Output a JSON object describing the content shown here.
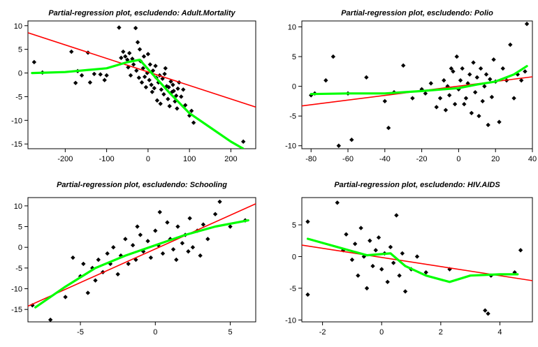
{
  "chart_data": [
    {
      "type": "scatter",
      "title": "Partial-regression plot, escludendo: Adult.Mortality",
      "xlim": [
        -290,
        260
      ],
      "ylim": [
        -16,
        11
      ],
      "xticks": [
        -200,
        -100,
        0,
        100,
        200
      ],
      "yticks": [
        -15,
        -10,
        -5,
        0,
        5,
        10
      ],
      "points": [
        [
          -275,
          2.3
        ],
        [
          -255,
          0.1
        ],
        [
          -185,
          4.5
        ],
        [
          -175,
          -2.1
        ],
        [
          -170,
          0.4
        ],
        [
          -160,
          -0.5
        ],
        [
          -145,
          4.3
        ],
        [
          -140,
          -2
        ],
        [
          -130,
          -0.2
        ],
        [
          -115,
          -0.3
        ],
        [
          -105,
          -1.5
        ],
        [
          -100,
          -0.5
        ],
        [
          -70,
          9.6
        ],
        [
          -65,
          3.2
        ],
        [
          -60,
          4.5
        ],
        [
          -55,
          3.5
        ],
        [
          -50,
          2.8
        ],
        [
          -48,
          1.2
        ],
        [
          -45,
          4.2
        ],
        [
          -42,
          -0.5
        ],
        [
          -38,
          3
        ],
        [
          -35,
          1.8
        ],
        [
          -30,
          9.5
        ],
        [
          -28,
          0.5
        ],
        [
          -25,
          6.5
        ],
        [
          -22,
          -1
        ],
        [
          -20,
          5
        ],
        [
          -18,
          2.5
        ],
        [
          -15,
          -2
        ],
        [
          -12,
          1
        ],
        [
          -10,
          3.5
        ],
        [
          -8,
          -0.8
        ],
        [
          -5,
          -3
        ],
        [
          -2,
          0
        ],
        [
          0,
          4
        ],
        [
          3,
          -1.5
        ],
        [
          5,
          1.8
        ],
        [
          8,
          -2.5
        ],
        [
          10,
          -4
        ],
        [
          12,
          0.5
        ],
        [
          15,
          -3.2
        ],
        [
          18,
          1.5
        ],
        [
          20,
          -1
        ],
        [
          22,
          -5.8
        ],
        [
          25,
          -2
        ],
        [
          28,
          -0.5
        ],
        [
          30,
          -6.5
        ],
        [
          32,
          -3.5
        ],
        [
          35,
          -1.2
        ],
        [
          38,
          -4.5
        ],
        [
          40,
          -0.2
        ],
        [
          42,
          1
        ],
        [
          45,
          -2.8
        ],
        [
          48,
          -5.5
        ],
        [
          50,
          -3
        ],
        [
          52,
          -7
        ],
        [
          55,
          -1.8
        ],
        [
          58,
          -4
        ],
        [
          60,
          -2.5
        ],
        [
          62,
          -3.8
        ],
        [
          65,
          -6
        ],
        [
          68,
          -4.8
        ],
        [
          70,
          -7.5
        ],
        [
          72,
          -3.3
        ],
        [
          75,
          -2
        ],
        [
          80,
          -5
        ],
        [
          85,
          -3.5
        ],
        [
          90,
          -6.8
        ],
        [
          100,
          -9
        ],
        [
          105,
          -8
        ],
        [
          110,
          -10.5
        ],
        [
          230,
          -14.5
        ]
      ],
      "series": [
        {
          "color": "#ff0000",
          "line": [
            [
              -290,
              8.5
            ],
            [
              260,
              -7.2
            ]
          ]
        },
        {
          "color": "#00ff00",
          "line": [
            [
              -280,
              0
            ],
            [
              -200,
              0.2
            ],
            [
              -100,
              1
            ],
            [
              -50,
              2.3
            ],
            [
              -20,
              2.8
            ],
            [
              0,
              0.8
            ],
            [
              50,
              -4
            ],
            [
              100,
              -8.5
            ],
            [
              150,
              -11.5
            ],
            [
              200,
              -14.5
            ],
            [
              230,
              -16
            ]
          ]
        }
      ]
    },
    {
      "type": "scatter",
      "title": "Partial-regression plot, escludendo: Polio",
      "xlim": [
        -85,
        40
      ],
      "ylim": [
        -10.5,
        11
      ],
      "xticks": [
        -80,
        -60,
        -40,
        -20,
        0,
        20,
        40
      ],
      "yticks": [
        -10,
        -5,
        0,
        5,
        10
      ],
      "points": [
        [
          -80,
          -1.5
        ],
        [
          -78,
          -1.2
        ],
        [
          -72,
          1
        ],
        [
          -68,
          5
        ],
        [
          -65,
          -10
        ],
        [
          -60,
          -1.2
        ],
        [
          -58,
          -9
        ],
        [
          -50,
          1.5
        ],
        [
          -40,
          -2.5
        ],
        [
          -38,
          -7
        ],
        [
          -35,
          -1
        ],
        [
          -30,
          3.5
        ],
        [
          -25,
          -2
        ],
        [
          -20,
          -0.5
        ],
        [
          -18,
          -1.2
        ],
        [
          -15,
          0.5
        ],
        [
          -12,
          -3.5
        ],
        [
          -10,
          -2
        ],
        [
          -8,
          1
        ],
        [
          -5,
          -1.5
        ],
        [
          -3,
          2.5
        ],
        [
          0,
          -0.5
        ],
        [
          1,
          1
        ],
        [
          2,
          3
        ],
        [
          3,
          -3
        ],
        [
          4,
          -2
        ],
        [
          5,
          0.5
        ],
        [
          6,
          2
        ],
        [
          7,
          -4.5
        ],
        [
          8,
          4
        ],
        [
          9,
          -1
        ],
        [
          10,
          1.5
        ],
        [
          11,
          -5
        ],
        [
          12,
          3
        ],
        [
          13,
          -2.5
        ],
        [
          14,
          0
        ],
        [
          15,
          2
        ],
        [
          16,
          -6.5
        ],
        [
          17,
          1.2
        ],
        [
          18,
          -1.8
        ],
        [
          19,
          4.5
        ],
        [
          20,
          0.8
        ],
        [
          -7,
          -4
        ],
        [
          -6,
          0
        ],
        [
          -4,
          3
        ],
        [
          -2,
          -3
        ],
        [
          -1,
          5
        ],
        [
          22,
          -6
        ],
        [
          24,
          3
        ],
        [
          26,
          1
        ],
        [
          28,
          7
        ],
        [
          30,
          -2
        ],
        [
          32,
          2
        ],
        [
          34,
          1
        ],
        [
          36,
          2.5
        ],
        [
          37,
          10.5
        ]
      ],
      "series": [
        {
          "color": "#ff0000",
          "line": [
            [
              -85,
              -3.3
            ],
            [
              40,
              1.6
            ]
          ]
        },
        {
          "color": "#00ff00",
          "line": [
            [
              -80,
              -1.3
            ],
            [
              -60,
              -1.2
            ],
            [
              -40,
              -1.2
            ],
            [
              -20,
              -0.8
            ],
            [
              0,
              -0.3
            ],
            [
              10,
              0.3
            ],
            [
              20,
              0.8
            ],
            [
              30,
              2
            ],
            [
              37,
              3.4
            ]
          ]
        }
      ]
    },
    {
      "type": "scatter",
      "title": "Partial-regression plot, escludendo: Schooling",
      "xlim": [
        -8.5,
        6.7
      ],
      "ylim": [
        -18,
        12
      ],
      "xticks": [
        -5,
        0,
        5
      ],
      "yticks": [
        -15,
        -10,
        -5,
        0,
        5,
        10
      ],
      "points": [
        [
          -8.2,
          -14
        ],
        [
          -7,
          -17.5
        ],
        [
          -6,
          -12
        ],
        [
          -5.5,
          -2.5
        ],
        [
          -5,
          -7
        ],
        [
          -4.8,
          -4
        ],
        [
          -4.5,
          -11
        ],
        [
          -4.2,
          -5
        ],
        [
          -4,
          -8
        ],
        [
          -3.8,
          -3
        ],
        [
          -3.5,
          -6
        ],
        [
          -3.2,
          -1.5
        ],
        [
          -3,
          -4
        ],
        [
          -2.8,
          0
        ],
        [
          -2.5,
          -6.5
        ],
        [
          -2.3,
          -2
        ],
        [
          -2,
          2
        ],
        [
          -1.8,
          -4
        ],
        [
          -1.5,
          0.5
        ],
        [
          -1.3,
          -3
        ],
        [
          -1,
          3
        ],
        [
          -0.8,
          -1
        ],
        [
          -0.5,
          1.5
        ],
        [
          -0.3,
          -2.5
        ],
        [
          0,
          4
        ],
        [
          0.2,
          0.5
        ],
        [
          0.5,
          -1.5
        ],
        [
          0.8,
          6
        ],
        [
          1,
          2
        ],
        [
          1.2,
          -0.5
        ],
        [
          1.5,
          5
        ],
        [
          1.8,
          1
        ],
        [
          2,
          3
        ],
        [
          2.3,
          7
        ],
        [
          2.5,
          0
        ],
        [
          2.8,
          4
        ],
        [
          3,
          -2
        ],
        [
          3.2,
          5.5
        ],
        [
          3.5,
          2
        ],
        [
          4,
          8
        ],
        [
          4.3,
          11
        ],
        [
          5,
          5
        ],
        [
          6,
          6.5
        ],
        [
          -1.2,
          5
        ],
        [
          0.3,
          8.5
        ],
        [
          1.4,
          -3
        ],
        [
          2.2,
          -1
        ]
      ],
      "series": [
        {
          "color": "#ff0000",
          "line": [
            [
              -8.5,
              -14.2
            ],
            [
              6.7,
              10.5
            ]
          ]
        },
        {
          "color": "#00ff00",
          "line": [
            [
              -8,
              -14.5
            ],
            [
              -6,
              -9.5
            ],
            [
              -4,
              -5
            ],
            [
              -2,
              -2
            ],
            [
              0,
              0.5
            ],
            [
              2,
              3
            ],
            [
              4,
              5
            ],
            [
              6.2,
              6.5
            ]
          ]
        }
      ]
    },
    {
      "type": "scatter",
      "title": "Partial-regression plot, escludendo: HIV.AIDS",
      "xlim": [
        -2.7,
        5.1
      ],
      "ylim": [
        -10.3,
        9.3
      ],
      "xticks": [
        -2,
        0,
        2,
        4
      ],
      "yticks": [
        -10,
        -5,
        0,
        5
      ],
      "points": [
        [
          -2.5,
          5.5
        ],
        [
          -2.5,
          -6
        ],
        [
          -1.5,
          8.5
        ],
        [
          -1.3,
          1
        ],
        [
          -1.2,
          3.5
        ],
        [
          -1,
          -0.5
        ],
        [
          -0.9,
          2
        ],
        [
          -0.8,
          -3
        ],
        [
          -0.7,
          4.5
        ],
        [
          -0.6,
          0
        ],
        [
          -0.5,
          -5
        ],
        [
          -0.4,
          2.5
        ],
        [
          -0.3,
          -1.5
        ],
        [
          -0.2,
          1
        ],
        [
          -0.1,
          3
        ],
        [
          0,
          -2
        ],
        [
          0.1,
          0.5
        ],
        [
          0.2,
          -4
        ],
        [
          0.3,
          1.5
        ],
        [
          0.4,
          -1
        ],
        [
          0.5,
          6.5
        ],
        [
          0.6,
          -3
        ],
        [
          0.7,
          0.5
        ],
        [
          0.8,
          -5.5
        ],
        [
          1,
          -2
        ],
        [
          1.2,
          0
        ],
        [
          1.5,
          -2.5
        ],
        [
          2.3,
          -2
        ],
        [
          3.5,
          -8.5
        ],
        [
          3.6,
          -9
        ],
        [
          3.7,
          -3
        ],
        [
          4.5,
          -2.5
        ],
        [
          4.7,
          1
        ]
      ],
      "series": [
        {
          "color": "#ff0000",
          "line": [
            [
              -2.7,
              1.8
            ],
            [
              5.1,
              -3.8
            ]
          ]
        },
        {
          "color": "#00ff00",
          "line": [
            [
              -2.5,
              2.8
            ],
            [
              -1.5,
              1.5
            ],
            [
              -0.5,
              0.2
            ],
            [
              0.3,
              0.5
            ],
            [
              0.8,
              -1.5
            ],
            [
              1.5,
              -3
            ],
            [
              2.3,
              -4
            ],
            [
              3,
              -3
            ],
            [
              4,
              -2.8
            ],
            [
              4.6,
              -2.8
            ]
          ]
        }
      ]
    }
  ]
}
